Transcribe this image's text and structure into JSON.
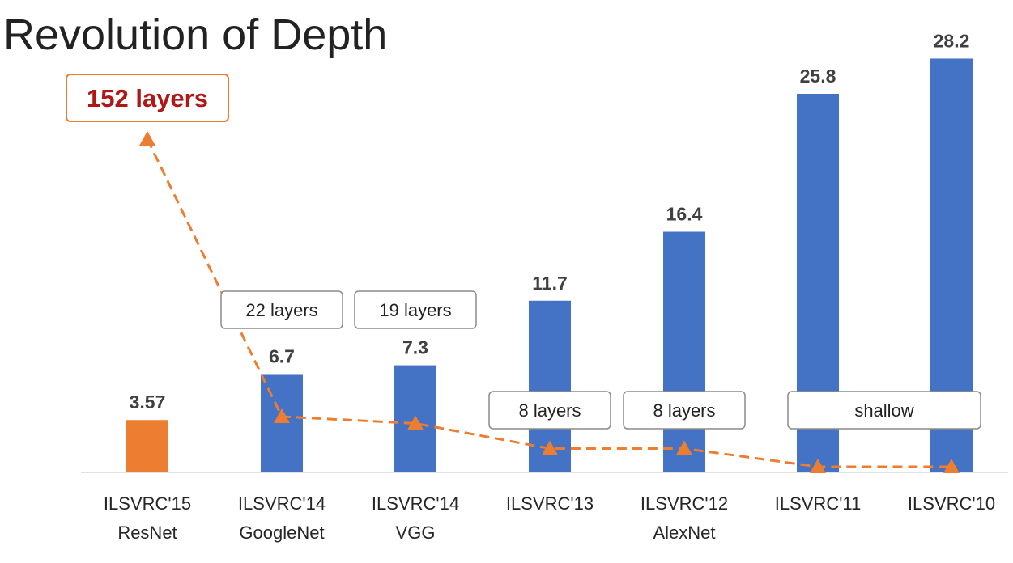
{
  "title": "Revolution of Depth",
  "chart_data": {
    "type": "bar",
    "categories": [
      [
        "ILSVRC'15",
        "ResNet"
      ],
      [
        "ILSVRC'14",
        "GoogleNet"
      ],
      [
        "ILSVRC'14",
        "VGG"
      ],
      [
        "ILSVRC'13"
      ],
      [
        "ILSVRC'12",
        "AlexNet"
      ],
      [
        "ILSVRC'11"
      ],
      [
        "ILSVRC'10"
      ]
    ],
    "values": [
      3.57,
      6.7,
      7.3,
      11.7,
      16.4,
      25.8,
      28.2
    ],
    "value_labels": [
      "3.57",
      "6.7",
      "7.3",
      "11.7",
      "16.4",
      "25.8",
      "28.2"
    ],
    "bar_colors": [
      "#ED7D31",
      "#4472C4",
      "#4472C4",
      "#4472C4",
      "#4472C4",
      "#4472C4",
      "#4472C4"
    ],
    "ylim": [
      0,
      29
    ],
    "depth_line": {
      "style": "dashed",
      "marker": "triangle",
      "color": "#ED7D31",
      "layers": [
        152,
        22,
        19,
        8,
        8,
        0,
        0
      ]
    },
    "layer_labels": [
      {
        "text": "152 layers",
        "emphasis": true
      },
      {
        "text": "22 layers"
      },
      {
        "text": "19 layers"
      },
      {
        "text": "8 layers"
      },
      {
        "text": "8 layers"
      },
      {
        "text": "shallow"
      }
    ]
  }
}
